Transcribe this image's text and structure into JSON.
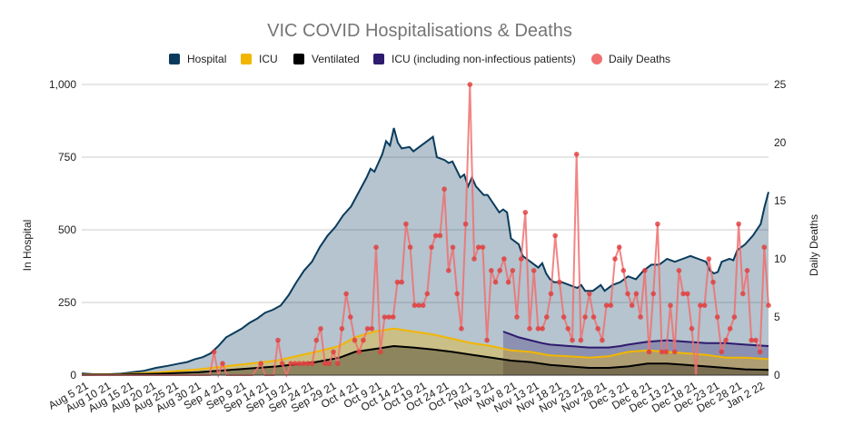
{
  "chart_data": {
    "type": "line",
    "title": "VIC COVID Hospitalisations & Deaths",
    "ylabel_left": "In Hospital",
    "ylabel_right": "Daily Deaths",
    "ylim_left": [
      0,
      1000
    ],
    "ylim_right": [
      0,
      25
    ],
    "yticks_left": [
      "0",
      "250",
      "500",
      "750",
      "1,000"
    ],
    "yticks_right": [
      "0",
      "5",
      "10",
      "15",
      "20",
      "25"
    ],
    "x_ticks": [
      "Aug 5 21",
      "Aug 10 21",
      "Aug 15 21",
      "Aug 20 21",
      "Aug 25 21",
      "Aug 30 21",
      "Sep 4 21",
      "Sep 9 21",
      "Sep 14 21",
      "Sep 19 21",
      "Sep 24 21",
      "Sep 29 21",
      "Oct 4 21",
      "Oct 9 21",
      "Oct 14 21",
      "Oct 19 21",
      "Oct 24 21",
      "Oct 29 21",
      "Nov 3 21",
      "Nov 8 21",
      "Nov 13 21",
      "Nov 18 21",
      "Nov 23 21",
      "Nov 28 21",
      "Dec 3 21",
      "Dec 8 21",
      "Dec 13 21",
      "Dec 18 21",
      "Dec 23 21",
      "Dec 28 21",
      "Jan 2 22"
    ],
    "num_days": 153,
    "icu_split_day": 99,
    "legend": [
      {
        "name": "Hospital",
        "color": "#0a3b5c",
        "marker": "square"
      },
      {
        "name": "ICU",
        "color": "#f2b600",
        "marker": "square"
      },
      {
        "name": "Ventilated",
        "color": "#000000",
        "marker": "square"
      },
      {
        "name": "ICU (including non-infectious patients)",
        "color": "#2e1a6e",
        "marker": "square"
      },
      {
        "name": "Daily Deaths",
        "color": "#f07070",
        "marker": "circle"
      }
    ],
    "series": {
      "hospital_keypoints": [
        [
          0,
          6
        ],
        [
          3,
          3
        ],
        [
          7,
          3
        ],
        [
          10,
          5
        ],
        [
          13,
          10
        ],
        [
          16,
          15
        ],
        [
          19,
          25
        ],
        [
          22,
          32
        ],
        [
          25,
          40
        ],
        [
          27,
          45
        ],
        [
          29,
          55
        ],
        [
          31,
          62
        ],
        [
          33,
          75
        ],
        [
          35,
          100
        ],
        [
          37,
          130
        ],
        [
          39,
          145
        ],
        [
          41,
          160
        ],
        [
          43,
          180
        ],
        [
          45,
          195
        ],
        [
          47,
          215
        ],
        [
          49,
          225
        ],
        [
          51,
          240
        ],
        [
          53,
          275
        ],
        [
          55,
          320
        ],
        [
          57,
          360
        ],
        [
          59,
          390
        ],
        [
          61,
          440
        ],
        [
          63,
          480
        ],
        [
          65,
          510
        ],
        [
          67,
          550
        ],
        [
          69,
          580
        ],
        [
          71,
          630
        ],
        [
          73,
          680
        ],
        [
          74,
          710
        ],
        [
          75,
          700
        ],
        [
          77,
          760
        ],
        [
          78,
          805
        ],
        [
          79,
          790
        ],
        [
          80,
          850
        ],
        [
          81,
          800
        ],
        [
          82,
          780
        ],
        [
          84,
          785
        ],
        [
          85,
          770
        ],
        [
          87,
          790
        ],
        [
          89,
          810
        ],
        [
          90,
          820
        ],
        [
          91,
          750
        ],
        [
          93,
          740
        ],
        [
          94,
          730
        ],
        [
          95,
          735
        ],
        [
          97,
          680
        ],
        [
          98,
          690
        ],
        [
          99,
          650
        ],
        [
          100,
          680
        ],
        [
          101,
          650
        ],
        [
          103,
          620
        ],
        [
          104,
          620
        ],
        [
          105,
          600
        ],
        [
          107,
          560
        ],
        [
          108,
          570
        ],
        [
          109,
          560
        ],
        [
          110,
          470
        ],
        [
          111,
          460
        ],
        [
          112,
          450
        ],
        [
          113,
          410
        ],
        [
          115,
          390
        ],
        [
          117,
          370
        ],
        [
          118,
          385
        ],
        [
          119,
          350
        ],
        [
          120,
          330
        ],
        [
          121,
          320
        ],
        [
          123,
          320
        ],
        [
          124,
          315
        ],
        [
          125,
          310
        ],
        [
          127,
          300
        ],
        [
          128,
          310
        ],
        [
          129,
          290
        ],
        [
          131,
          290
        ],
        [
          133,
          310
        ],
        [
          134,
          290
        ],
        [
          136,
          310
        ],
        [
          138,
          320
        ],
        [
          140,
          340
        ],
        [
          142,
          330
        ],
        [
          144,
          360
        ],
        [
          146,
          380
        ],
        [
          148,
          380
        ],
        [
          150,
          400
        ],
        [
          152,
          390
        ],
        [
          154,
          400
        ],
        [
          156,
          410
        ],
        [
          158,
          400
        ],
        [
          160,
          390
        ],
        [
          161,
          360
        ],
        [
          162,
          350
        ],
        [
          163,
          355
        ],
        [
          164,
          390
        ],
        [
          166,
          400
        ],
        [
          167,
          395
        ],
        [
          168,
          430
        ],
        [
          170,
          450
        ],
        [
          172,
          480
        ],
        [
          174,
          520
        ],
        [
          175,
          580
        ],
        [
          176,
          630
        ]
      ],
      "icu_keypoints": [
        [
          0,
          2
        ],
        [
          10,
          3
        ],
        [
          20,
          10
        ],
        [
          30,
          20
        ],
        [
          40,
          35
        ],
        [
          50,
          50
        ],
        [
          60,
          80
        ],
        [
          66,
          100
        ],
        [
          70,
          130
        ],
        [
          75,
          150
        ],
        [
          80,
          160
        ],
        [
          85,
          150
        ],
        [
          90,
          140
        ],
        [
          95,
          125
        ],
        [
          100,
          110
        ],
        [
          105,
          100
        ],
        [
          110,
          85
        ],
        [
          115,
          80
        ],
        [
          120,
          68
        ],
        [
          125,
          65
        ],
        [
          130,
          60
        ],
        [
          135,
          65
        ],
        [
          140,
          80
        ],
        [
          145,
          85
        ],
        [
          150,
          80
        ],
        [
          155,
          75
        ],
        [
          160,
          70
        ],
        [
          165,
          60
        ],
        [
          170,
          60
        ],
        [
          176,
          55
        ]
      ],
      "vent_keypoints": [
        [
          0,
          1
        ],
        [
          10,
          2
        ],
        [
          20,
          5
        ],
        [
          30,
          10
        ],
        [
          40,
          20
        ],
        [
          50,
          30
        ],
        [
          60,
          45
        ],
        [
          66,
          60
        ],
        [
          70,
          80
        ],
        [
          75,
          90
        ],
        [
          80,
          100
        ],
        [
          85,
          95
        ],
        [
          90,
          88
        ],
        [
          95,
          80
        ],
        [
          100,
          70
        ],
        [
          105,
          60
        ],
        [
          110,
          50
        ],
        [
          115,
          45
        ],
        [
          120,
          35
        ],
        [
          125,
          30
        ],
        [
          130,
          25
        ],
        [
          135,
          25
        ],
        [
          140,
          30
        ],
        [
          145,
          40
        ],
        [
          150,
          40
        ],
        [
          155,
          35
        ],
        [
          160,
          30
        ],
        [
          165,
          25
        ],
        [
          170,
          20
        ],
        [
          176,
          18
        ]
      ],
      "icu_incl_keypoints": [
        [
          108,
          150
        ],
        [
          110,
          140
        ],
        [
          112,
          130
        ],
        [
          115,
          120
        ],
        [
          118,
          110
        ],
        [
          120,
          105
        ],
        [
          125,
          100
        ],
        [
          130,
          95
        ],
        [
          135,
          95
        ],
        [
          138,
          100
        ],
        [
          140,
          105
        ],
        [
          145,
          115
        ],
        [
          150,
          120
        ],
        [
          155,
          115
        ],
        [
          160,
          110
        ],
        [
          165,
          110
        ],
        [
          170,
          105
        ],
        [
          176,
          100
        ]
      ],
      "deaths": [
        [
          0,
          0
        ],
        [
          2,
          0
        ],
        [
          4,
          0
        ],
        [
          6,
          0
        ],
        [
          8,
          0
        ],
        [
          10,
          0
        ],
        [
          12,
          0
        ],
        [
          14,
          0
        ],
        [
          16,
          0
        ],
        [
          18,
          0
        ],
        [
          20,
          0
        ],
        [
          22,
          0
        ],
        [
          24,
          0
        ],
        [
          26,
          0
        ],
        [
          28,
          0
        ],
        [
          30,
          0
        ],
        [
          31,
          2
        ],
        [
          32,
          0
        ],
        [
          33,
          1
        ],
        [
          34,
          0
        ],
        [
          36,
          0
        ],
        [
          38,
          0
        ],
        [
          40,
          0
        ],
        [
          42,
          1
        ],
        [
          43,
          0
        ],
        [
          45,
          0
        ],
        [
          46,
          3
        ],
        [
          47,
          1
        ],
        [
          48,
          0
        ],
        [
          49,
          1
        ],
        [
          50,
          1
        ],
        [
          51,
          1
        ],
        [
          52,
          1
        ],
        [
          53,
          1
        ],
        [
          54,
          1
        ],
        [
          55,
          3
        ],
        [
          56,
          4
        ],
        [
          57,
          1
        ],
        [
          58,
          1
        ],
        [
          59,
          2
        ],
        [
          60,
          1
        ],
        [
          61,
          4
        ],
        [
          62,
          7
        ],
        [
          63,
          5
        ],
        [
          64,
          3
        ],
        [
          65,
          2
        ],
        [
          66,
          3
        ],
        [
          67,
          4
        ],
        [
          68,
          4
        ],
        [
          69,
          11
        ],
        [
          70,
          2
        ],
        [
          71,
          5
        ],
        [
          72,
          5
        ],
        [
          73,
          5
        ],
        [
          74,
          8
        ],
        [
          75,
          8
        ],
        [
          76,
          13
        ],
        [
          77,
          11
        ],
        [
          78,
          6
        ],
        [
          79,
          6
        ],
        [
          80,
          6
        ],
        [
          81,
          7
        ],
        [
          82,
          11
        ],
        [
          83,
          12
        ],
        [
          84,
          12
        ],
        [
          85,
          16
        ],
        [
          86,
          9
        ],
        [
          87,
          11
        ],
        [
          88,
          7
        ],
        [
          89,
          4
        ],
        [
          90,
          13
        ],
        [
          91,
          25
        ],
        [
          92,
          10
        ],
        [
          93,
          11
        ],
        [
          94,
          11
        ],
        [
          95,
          3
        ],
        [
          96,
          9
        ],
        [
          97,
          8
        ],
        [
          98,
          9
        ],
        [
          99,
          10
        ],
        [
          100,
          8
        ],
        [
          101,
          9
        ],
        [
          102,
          5
        ],
        [
          103,
          10
        ],
        [
          104,
          14
        ],
        [
          105,
          4
        ],
        [
          106,
          9
        ],
        [
          107,
          4
        ],
        [
          108,
          4
        ],
        [
          109,
          5
        ],
        [
          110,
          7
        ],
        [
          111,
          12
        ],
        [
          112,
          8
        ],
        [
          113,
          5
        ],
        [
          114,
          4
        ],
        [
          115,
          3
        ],
        [
          116,
          19
        ],
        [
          117,
          3
        ],
        [
          118,
          5
        ],
        [
          119,
          7
        ],
        [
          120,
          5
        ],
        [
          121,
          4
        ],
        [
          122,
          3
        ],
        [
          123,
          6
        ],
        [
          124,
          6
        ],
        [
          125,
          10
        ],
        [
          126,
          11
        ],
        [
          127,
          9
        ],
        [
          128,
          7
        ],
        [
          129,
          6
        ],
        [
          130,
          7
        ],
        [
          131,
          5
        ],
        [
          132,
          9
        ],
        [
          133,
          2
        ],
        [
          134,
          7
        ],
        [
          135,
          13
        ],
        [
          136,
          2
        ],
        [
          137,
          2
        ],
        [
          138,
          6
        ],
        [
          139,
          2
        ],
        [
          140,
          9
        ],
        [
          141,
          7
        ],
        [
          142,
          7
        ],
        [
          143,
          4
        ],
        [
          144,
          0
        ],
        [
          145,
          6
        ],
        [
          146,
          6
        ],
        [
          147,
          10
        ],
        [
          148,
          8
        ],
        [
          149,
          5
        ],
        [
          150,
          2
        ],
        [
          151,
          3
        ],
        [
          152,
          4
        ],
        [
          153,
          5
        ],
        [
          154,
          13
        ],
        [
          155,
          7
        ],
        [
          156,
          9
        ],
        [
          157,
          3
        ],
        [
          158,
          3
        ],
        [
          159,
          2
        ],
        [
          160,
          11
        ],
        [
          161,
          6
        ]
      ]
    }
  }
}
